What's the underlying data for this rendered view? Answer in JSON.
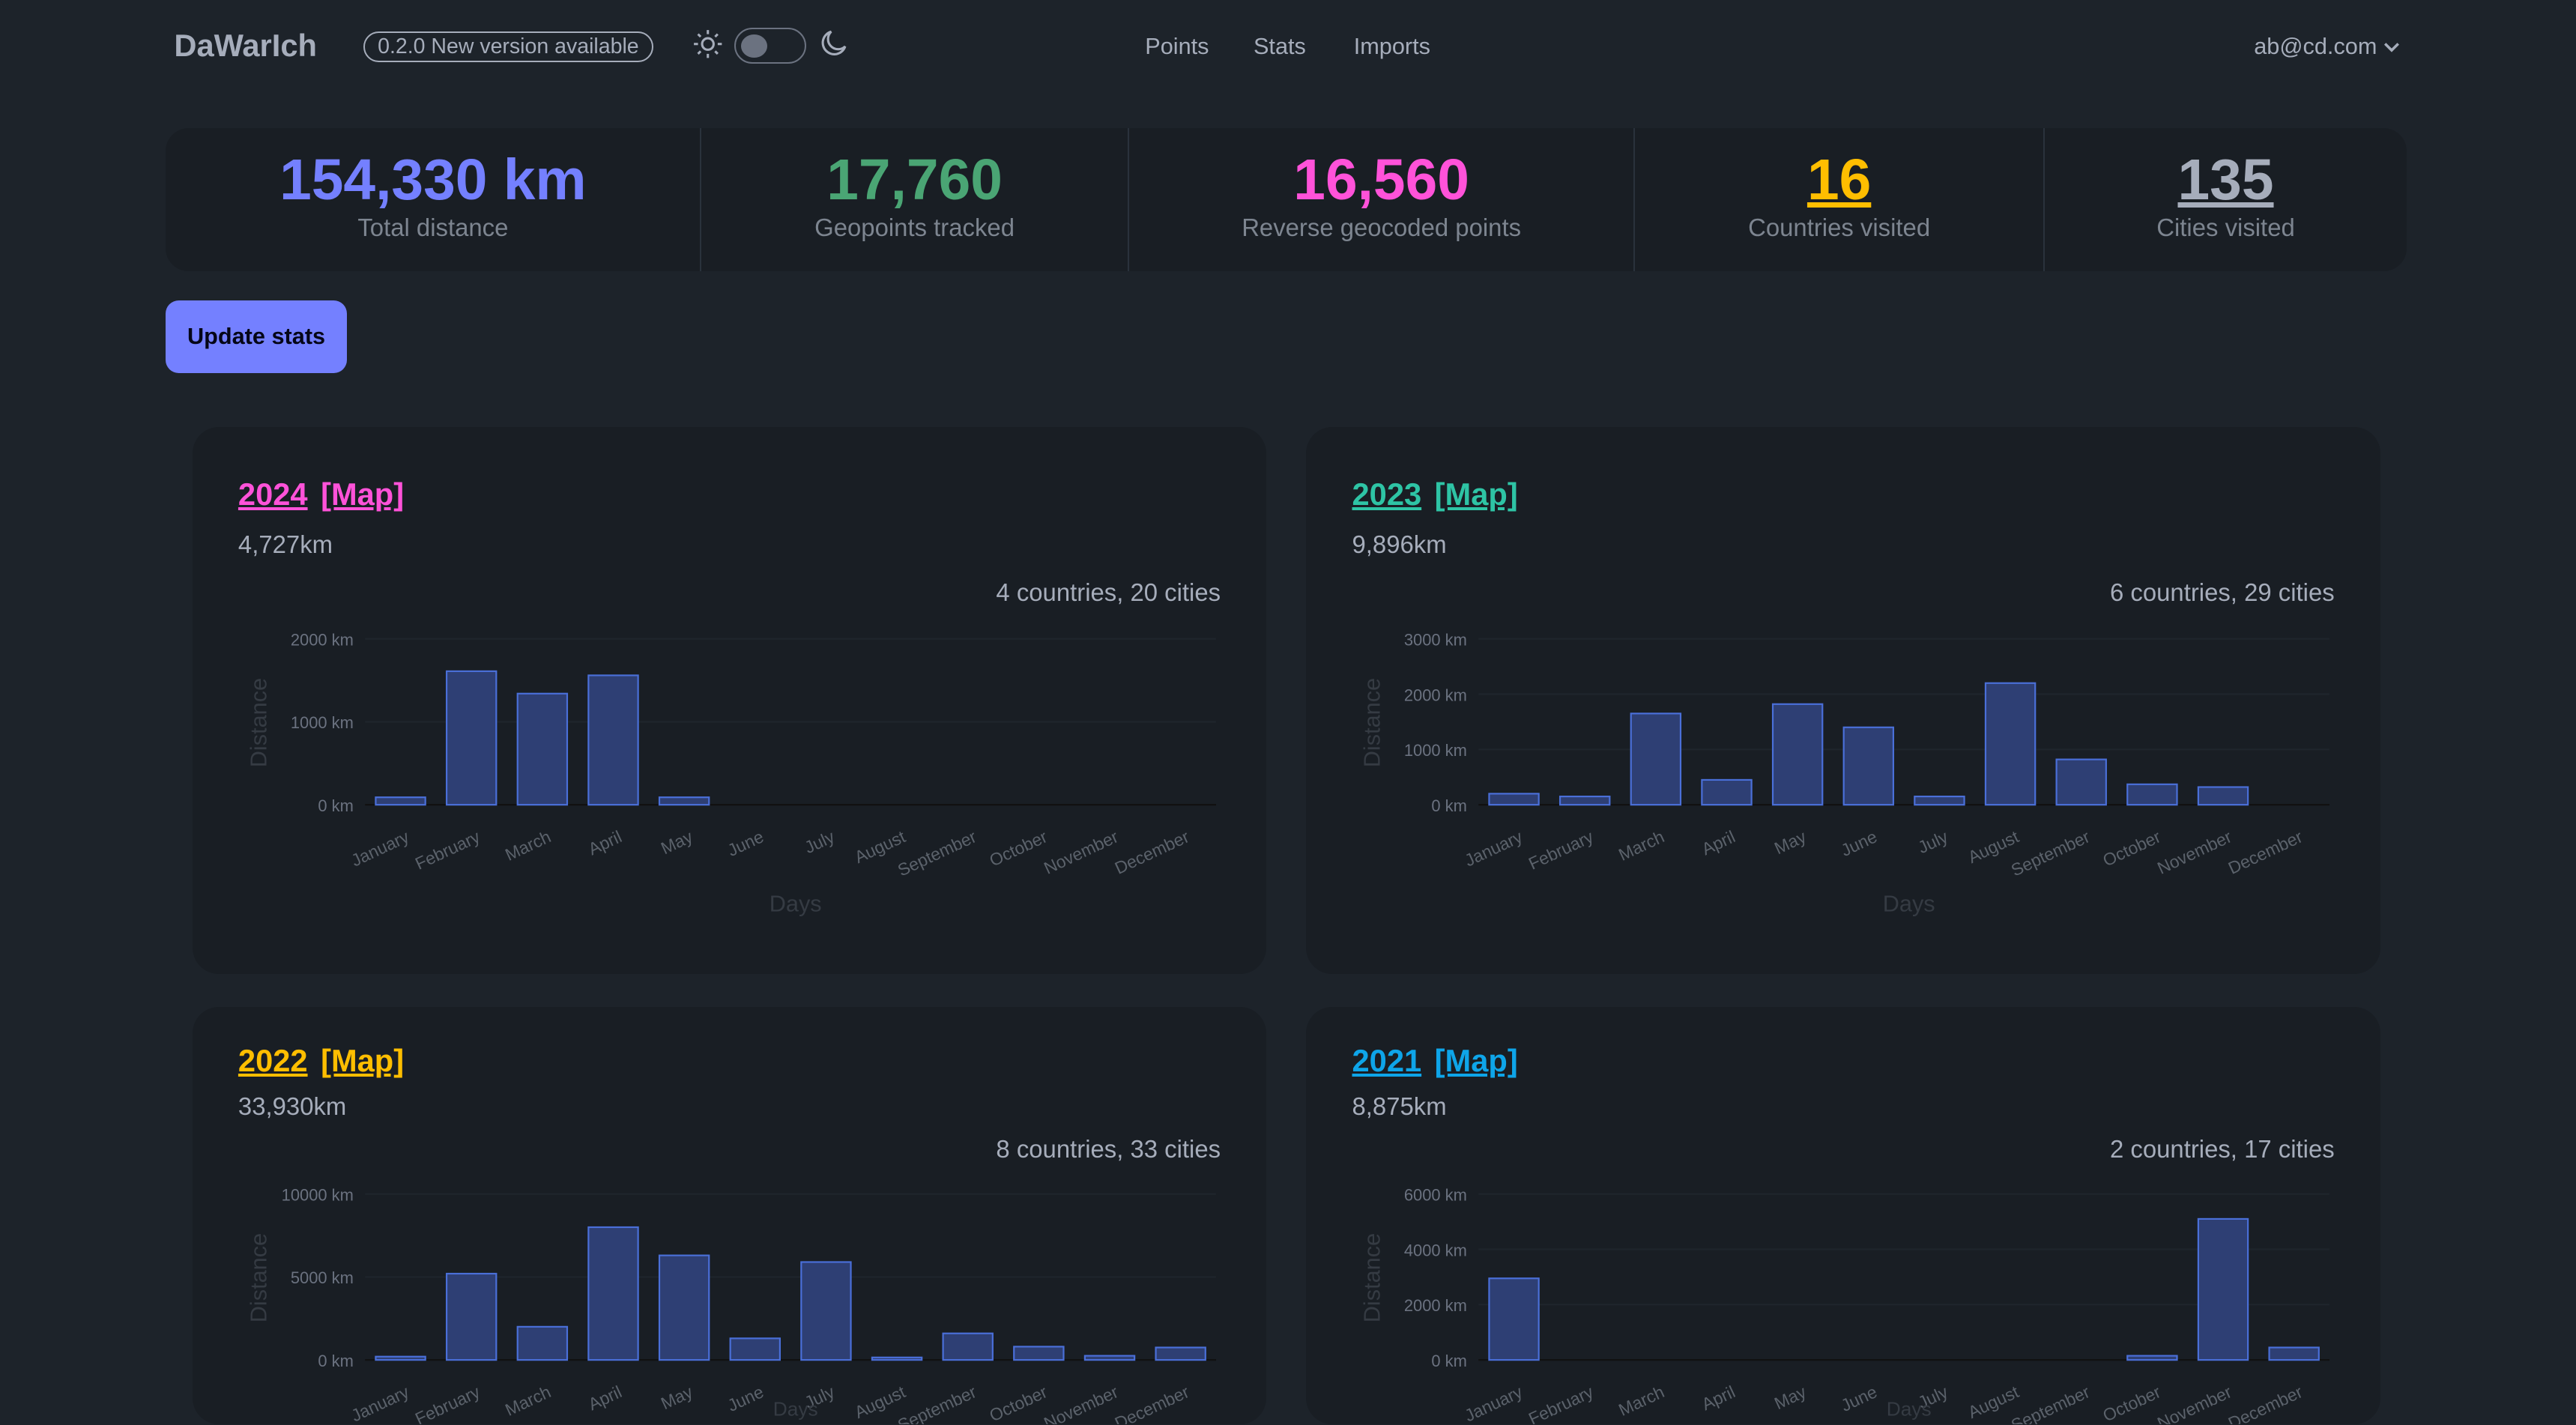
{
  "header": {
    "logo": "DaWarIch",
    "version_badge": "0.2.0  New version available",
    "theme_icons": [
      "sun-icon",
      "moon-icon"
    ],
    "theme_toggle_dark": false,
    "nav": [
      "Points",
      "Stats",
      "Imports"
    ],
    "user": "ab@cd.com"
  },
  "stats": [
    {
      "value": "154,330 km",
      "label": "Total distance",
      "color": "#7480ff"
    },
    {
      "value": "17,760",
      "label": "Geopoints tracked",
      "color": "#4aa574"
    },
    {
      "value": "16,560",
      "label": "Reverse geocoded points",
      "color": "#ff52d9"
    },
    {
      "value": "16",
      "label": "Countries visited",
      "color": "#ffbe00",
      "underline": true
    },
    {
      "value": "135",
      "label": "Cities visited",
      "color": "#a6adbb",
      "underline": true
    }
  ],
  "update_button": "Update stats",
  "years": [
    {
      "year": "2024",
      "map": "[Map]",
      "color": "#ff52d9",
      "distance": "4,727km",
      "summary": "4 countries, 20 cities"
    },
    {
      "year": "2023",
      "map": "[Map]",
      "color": "#2ec4a5",
      "distance": "9,896km",
      "summary": "6 countries, 29 cities"
    },
    {
      "year": "2022",
      "map": "[Map]",
      "color": "#ffbe00",
      "distance": "33,930km",
      "summary": "8 countries, 33 cities"
    },
    {
      "year": "2021",
      "map": "[Map]",
      "color": "#0ea5e9",
      "distance": "8,875km",
      "summary": "2 countries, 17 cities"
    }
  ],
  "chart_data": [
    {
      "type": "bar",
      "xlabel": "Days",
      "ylabel": "Distance",
      "ylim": [
        0,
        2000
      ],
      "yticks": [
        "0 km",
        "1000 km",
        "2000 km"
      ],
      "categories": [
        "January",
        "February",
        "March",
        "April",
        "May",
        "June",
        "July",
        "August",
        "September",
        "October",
        "November",
        "December"
      ],
      "values": [
        90,
        1610,
        1340,
        1560,
        90,
        0,
        0,
        0,
        0,
        0,
        0,
        0
      ],
      "bar_color": "#2e3f74",
      "grid": true
    },
    {
      "type": "bar",
      "xlabel": "Days",
      "ylabel": "Distance",
      "ylim": [
        0,
        3000
      ],
      "yticks": [
        "0 km",
        "1000 km",
        "2000 km",
        "3000 km"
      ],
      "categories": [
        "January",
        "February",
        "March",
        "April",
        "May",
        "June",
        "July",
        "August",
        "September",
        "October",
        "November",
        "December"
      ],
      "values": [
        200,
        150,
        1650,
        450,
        1820,
        1400,
        150,
        2200,
        820,
        370,
        320,
        0
      ],
      "bar_color": "#2e3f74",
      "grid": true
    },
    {
      "type": "bar",
      "xlabel": "Days",
      "ylabel": "Distance",
      "ylim": [
        0,
        10000
      ],
      "yticks": [
        "0 km",
        "5000 km",
        "10000 km"
      ],
      "categories": [
        "January",
        "February",
        "March",
        "April",
        "May",
        "June",
        "July",
        "August",
        "September",
        "October",
        "November",
        "December"
      ],
      "values": [
        200,
        5200,
        2000,
        8000,
        6300,
        1300,
        5900,
        150,
        1600,
        800,
        250,
        750
      ],
      "bar_color": "#2e3f74",
      "grid": true
    },
    {
      "type": "bar",
      "xlabel": "Days",
      "ylabel": "Distance",
      "ylim": [
        0,
        6000
      ],
      "yticks": [
        "0 km",
        "2000 km",
        "4000 km",
        "6000 km"
      ],
      "categories": [
        "January",
        "February",
        "March",
        "April",
        "May",
        "June",
        "July",
        "August",
        "September",
        "October",
        "November",
        "December"
      ],
      "values": [
        2950,
        0,
        0,
        0,
        0,
        0,
        0,
        0,
        0,
        150,
        5100,
        450
      ],
      "bar_color": "#2e3f74",
      "grid": true
    }
  ]
}
